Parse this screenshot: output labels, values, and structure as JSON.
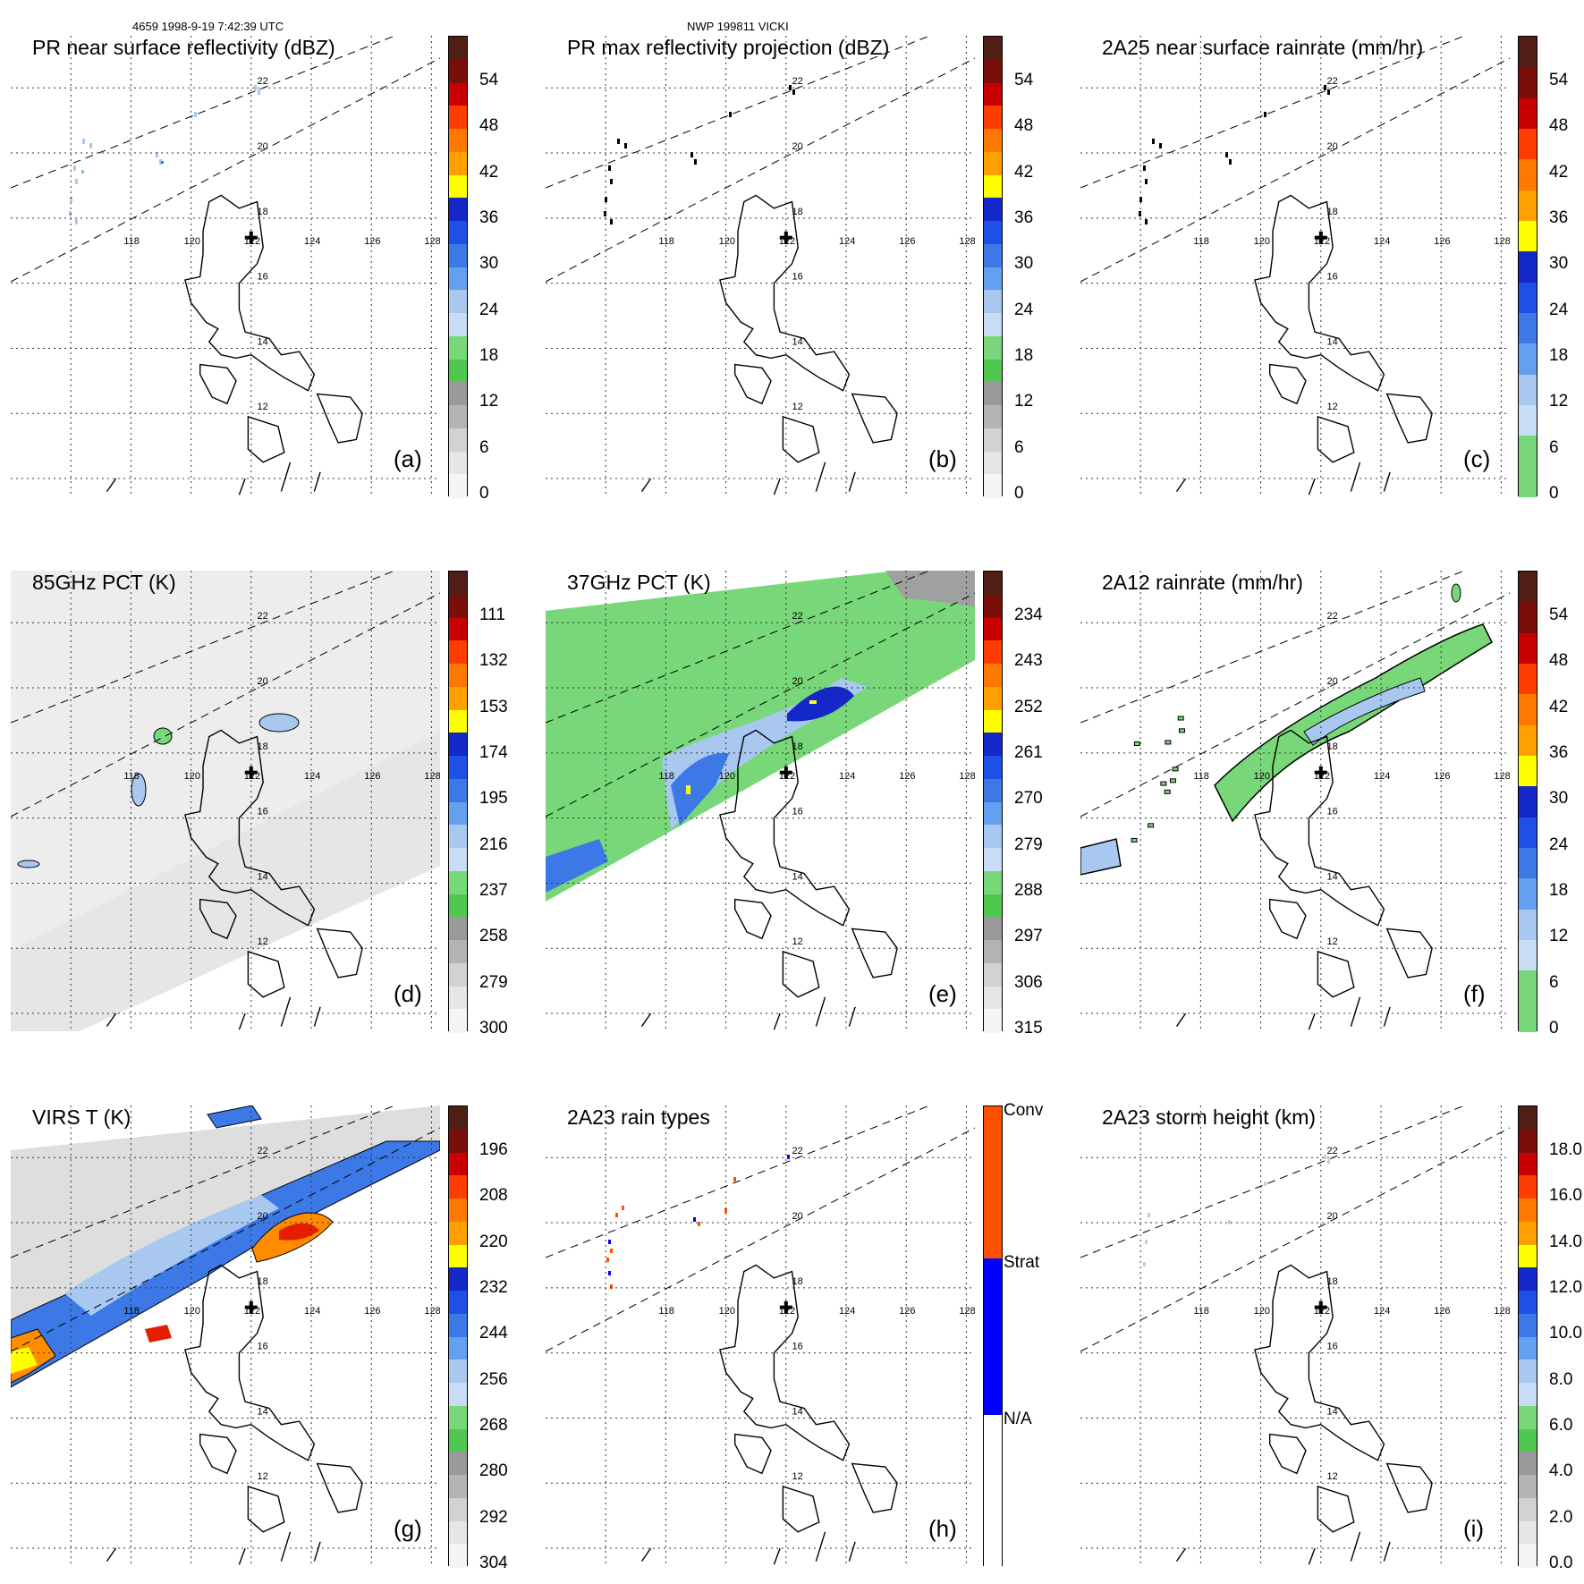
{
  "header": {
    "left": "4659 1998-9-19 7:42:39 UTC",
    "center": "NWP 199811 VICKI"
  },
  "lon_labels": [
    "118",
    "120",
    "122",
    "124",
    "126",
    "128"
  ],
  "lat_labels": [
    "22",
    "20",
    "18",
    "16",
    "14",
    "12"
  ],
  "panels": [
    {
      "id": "a",
      "title": "PR near surface reflectivity (dBZ)",
      "label": "(a)",
      "ticks": [
        "54",
        "48",
        "42",
        "36",
        "30",
        "24",
        "18",
        "12",
        "6",
        "0"
      ],
      "scale": "dbz",
      "field": "pr"
    },
    {
      "id": "b",
      "title": "PR max reflectivity projection (dBZ)",
      "label": "(b)",
      "ticks": [
        "54",
        "48",
        "42",
        "36",
        "30",
        "24",
        "18",
        "12",
        "6",
        "0"
      ],
      "scale": "dbz",
      "field": "prmax"
    },
    {
      "id": "c",
      "title": "2A25 near surface rainrate (mm/hr)",
      "label": "(c)",
      "ticks": [
        "54",
        "48",
        "42",
        "36",
        "30",
        "24",
        "18",
        "12",
        "6",
        "0"
      ],
      "scale": "rain",
      "field": "prmax"
    },
    {
      "id": "d",
      "title": "85GHz PCT (K)",
      "label": "(d)",
      "ticks": [
        "111",
        "132",
        "153",
        "174",
        "195",
        "216",
        "237",
        "258",
        "279",
        "300"
      ],
      "scale": "dbz",
      "field": "p85"
    },
    {
      "id": "e",
      "title": "37GHz PCT (K)",
      "label": "(e)",
      "ticks": [
        "234",
        "243",
        "252",
        "261",
        "270",
        "279",
        "288",
        "297",
        "306",
        "315"
      ],
      "scale": "dbz",
      "field": "p37"
    },
    {
      "id": "f",
      "title": "2A12 rainrate (mm/hr)",
      "label": "(f)",
      "ticks": [
        "54",
        "48",
        "42",
        "36",
        "30",
        "24",
        "18",
        "12",
        "6",
        "0"
      ],
      "scale": "rain",
      "field": "a12"
    },
    {
      "id": "g",
      "title": "VIRS T (K)",
      "label": "(g)",
      "ticks": [
        "196",
        "208",
        "220",
        "232",
        "244",
        "256",
        "268",
        "280",
        "292",
        "304"
      ],
      "scale": "dbz",
      "field": "virs"
    },
    {
      "id": "h",
      "title": "2A23 rain types",
      "label": "(h)",
      "ticks": [
        "Conv",
        "Strat",
        "N/A"
      ],
      "scale": "type",
      "field": "types"
    },
    {
      "id": "i",
      "title": "2A23 storm height (km)",
      "label": "(i)",
      "ticks": [
        "18.0",
        "16.0",
        "14.0",
        "12.0",
        "10.0",
        "8.0",
        "6.0",
        "4.0",
        "2.0",
        "0.0"
      ],
      "scale": "ht",
      "field": "height"
    }
  ],
  "colors": {
    "coast": "#000000",
    "green": "#78d778",
    "lightblue": "#a8c8f0",
    "blue": "#3c78e6",
    "darkblue": "#1428c8",
    "yellow": "#ffff00",
    "orange": "#ff8c00",
    "red": "#e61e00",
    "darkred": "#501e14",
    "conv": "#ff5000",
    "strat": "#0000ff",
    "gray": "#b4b4b4"
  }
}
